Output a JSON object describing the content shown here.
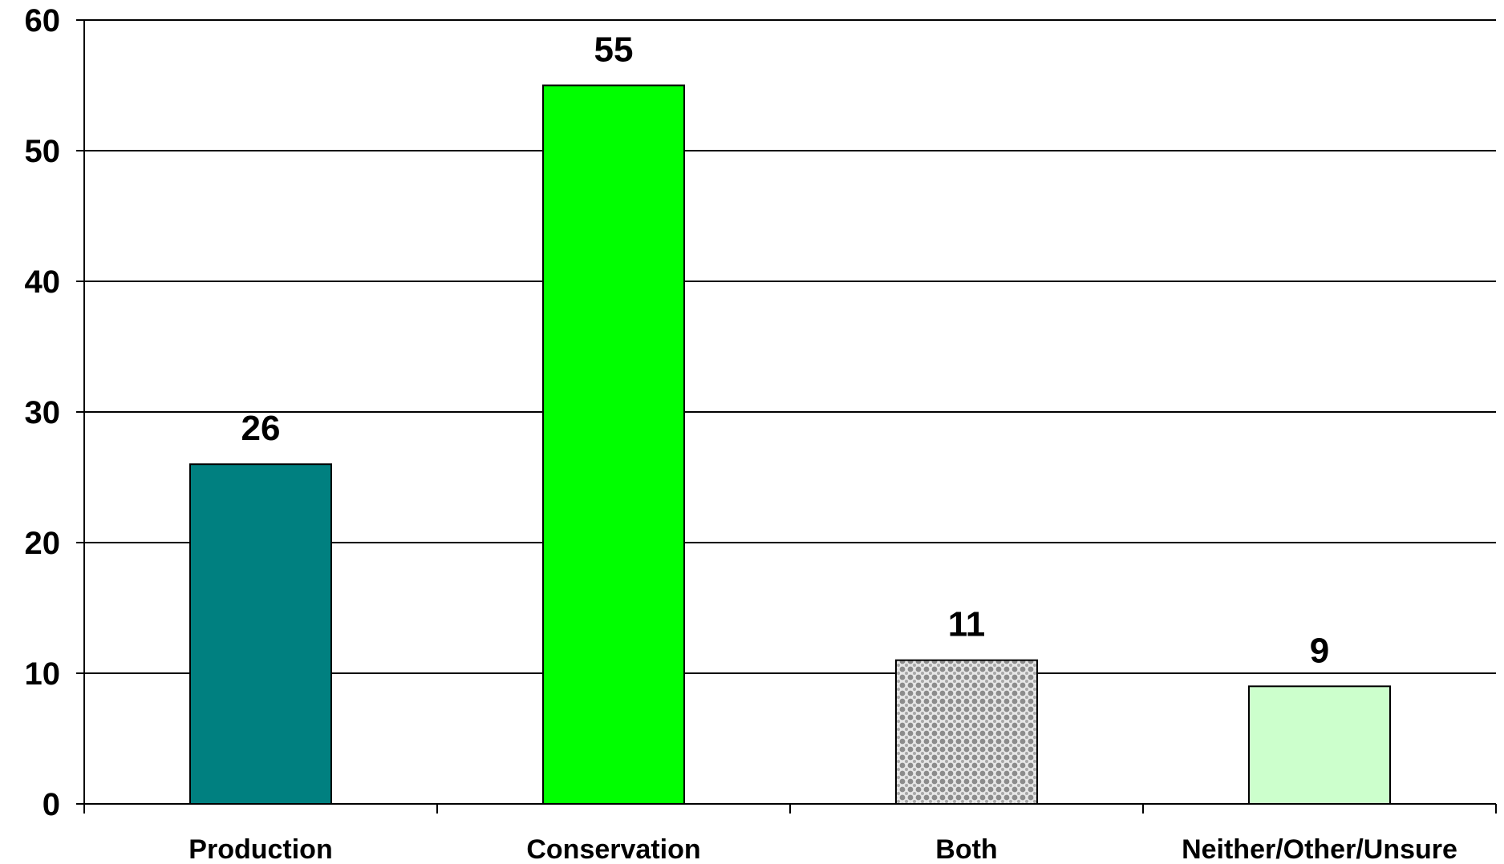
{
  "chart_data": {
    "type": "bar",
    "title": "",
    "xlabel": "",
    "ylabel": "",
    "categories": [
      "Production",
      "Conservation",
      "Both",
      "Neither/Other/Unsure"
    ],
    "values": [
      26,
      55,
      11,
      9
    ],
    "data_labels": [
      "26",
      "55",
      "11",
      "9"
    ],
    "bar_colors": [
      "#008080",
      "#00ff00",
      "#c8c8c8",
      "#ccffcc"
    ],
    "bar_patterns": [
      "solid",
      "solid",
      "dotted",
      "solid"
    ],
    "bar_edge_color": "#000000",
    "ylim": [
      0,
      60
    ],
    "yticks": [
      0,
      10,
      20,
      30,
      40,
      50,
      60
    ],
    "ytick_labels": [
      "0",
      "10",
      "20",
      "30",
      "40",
      "50",
      "60"
    ],
    "grid": true,
    "gridline_color": "#000000",
    "legend": "none"
  }
}
